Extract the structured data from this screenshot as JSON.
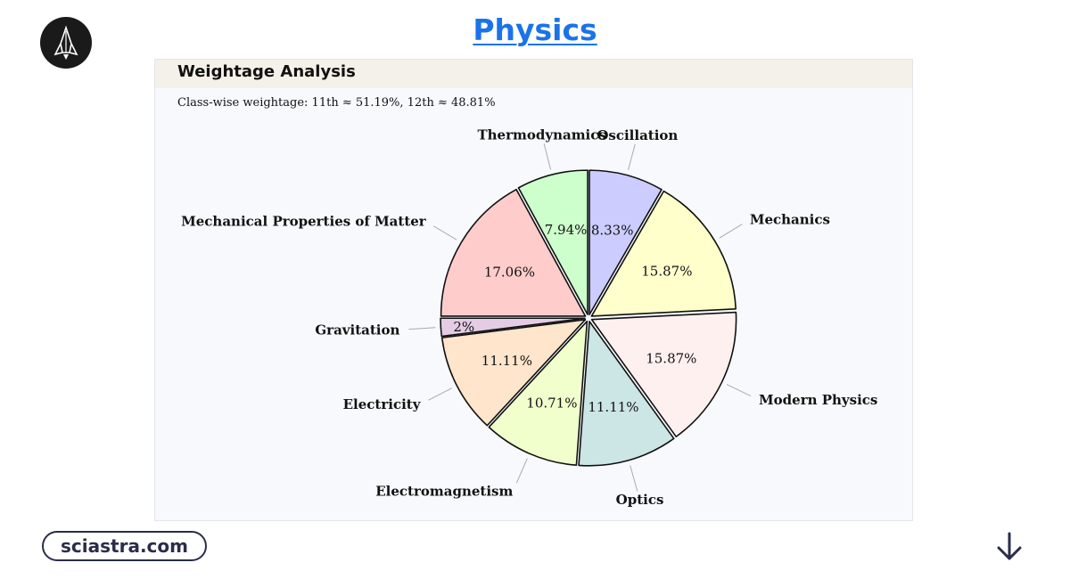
{
  "header": {
    "title": "Physics"
  },
  "card": {
    "title": "Weightage Analysis",
    "subtitle": "Class-wise weightage: 11th ≈ 51.19%, 12th ≈ 48.81%"
  },
  "footer": {
    "brand": "sciastra.com"
  },
  "icons": {
    "logo": "rocket-logo-icon",
    "scroll": "arrow-down-icon"
  },
  "chart_data": {
    "type": "pie",
    "title": "",
    "start": "top, clockwise",
    "slices": [
      {
        "label": "Oscillation",
        "value": 8.33,
        "value_label": "8.33%",
        "color": "#ccccff"
      },
      {
        "label": "Mechanics",
        "value": 15.87,
        "value_label": "15.87%",
        "color": "#ffffcc"
      },
      {
        "label": "Modern Physics",
        "value": 15.87,
        "value_label": "15.87%",
        "color": "#fff0f0"
      },
      {
        "label": "Optics",
        "value": 11.11,
        "value_label": "11.11%",
        "color": "#cce5e5"
      },
      {
        "label": "Electromagnetism",
        "value": 10.71,
        "value_label": "10.71%",
        "color": "#f0ffcc"
      },
      {
        "label": "Electricity",
        "value": 11.11,
        "value_label": "11.11%",
        "color": "#ffe5cc"
      },
      {
        "label": "Gravitation",
        "value": 2,
        "value_label": "2%",
        "color": "#e5cce5"
      },
      {
        "label": "Mechanical Properties of Matter",
        "value": 17.06,
        "value_label": "17.06%",
        "color": "#ffcccc"
      },
      {
        "label": "Thermodynamics",
        "value": 7.94,
        "value_label": "7.94%",
        "color": "#ccffcc"
      }
    ]
  }
}
